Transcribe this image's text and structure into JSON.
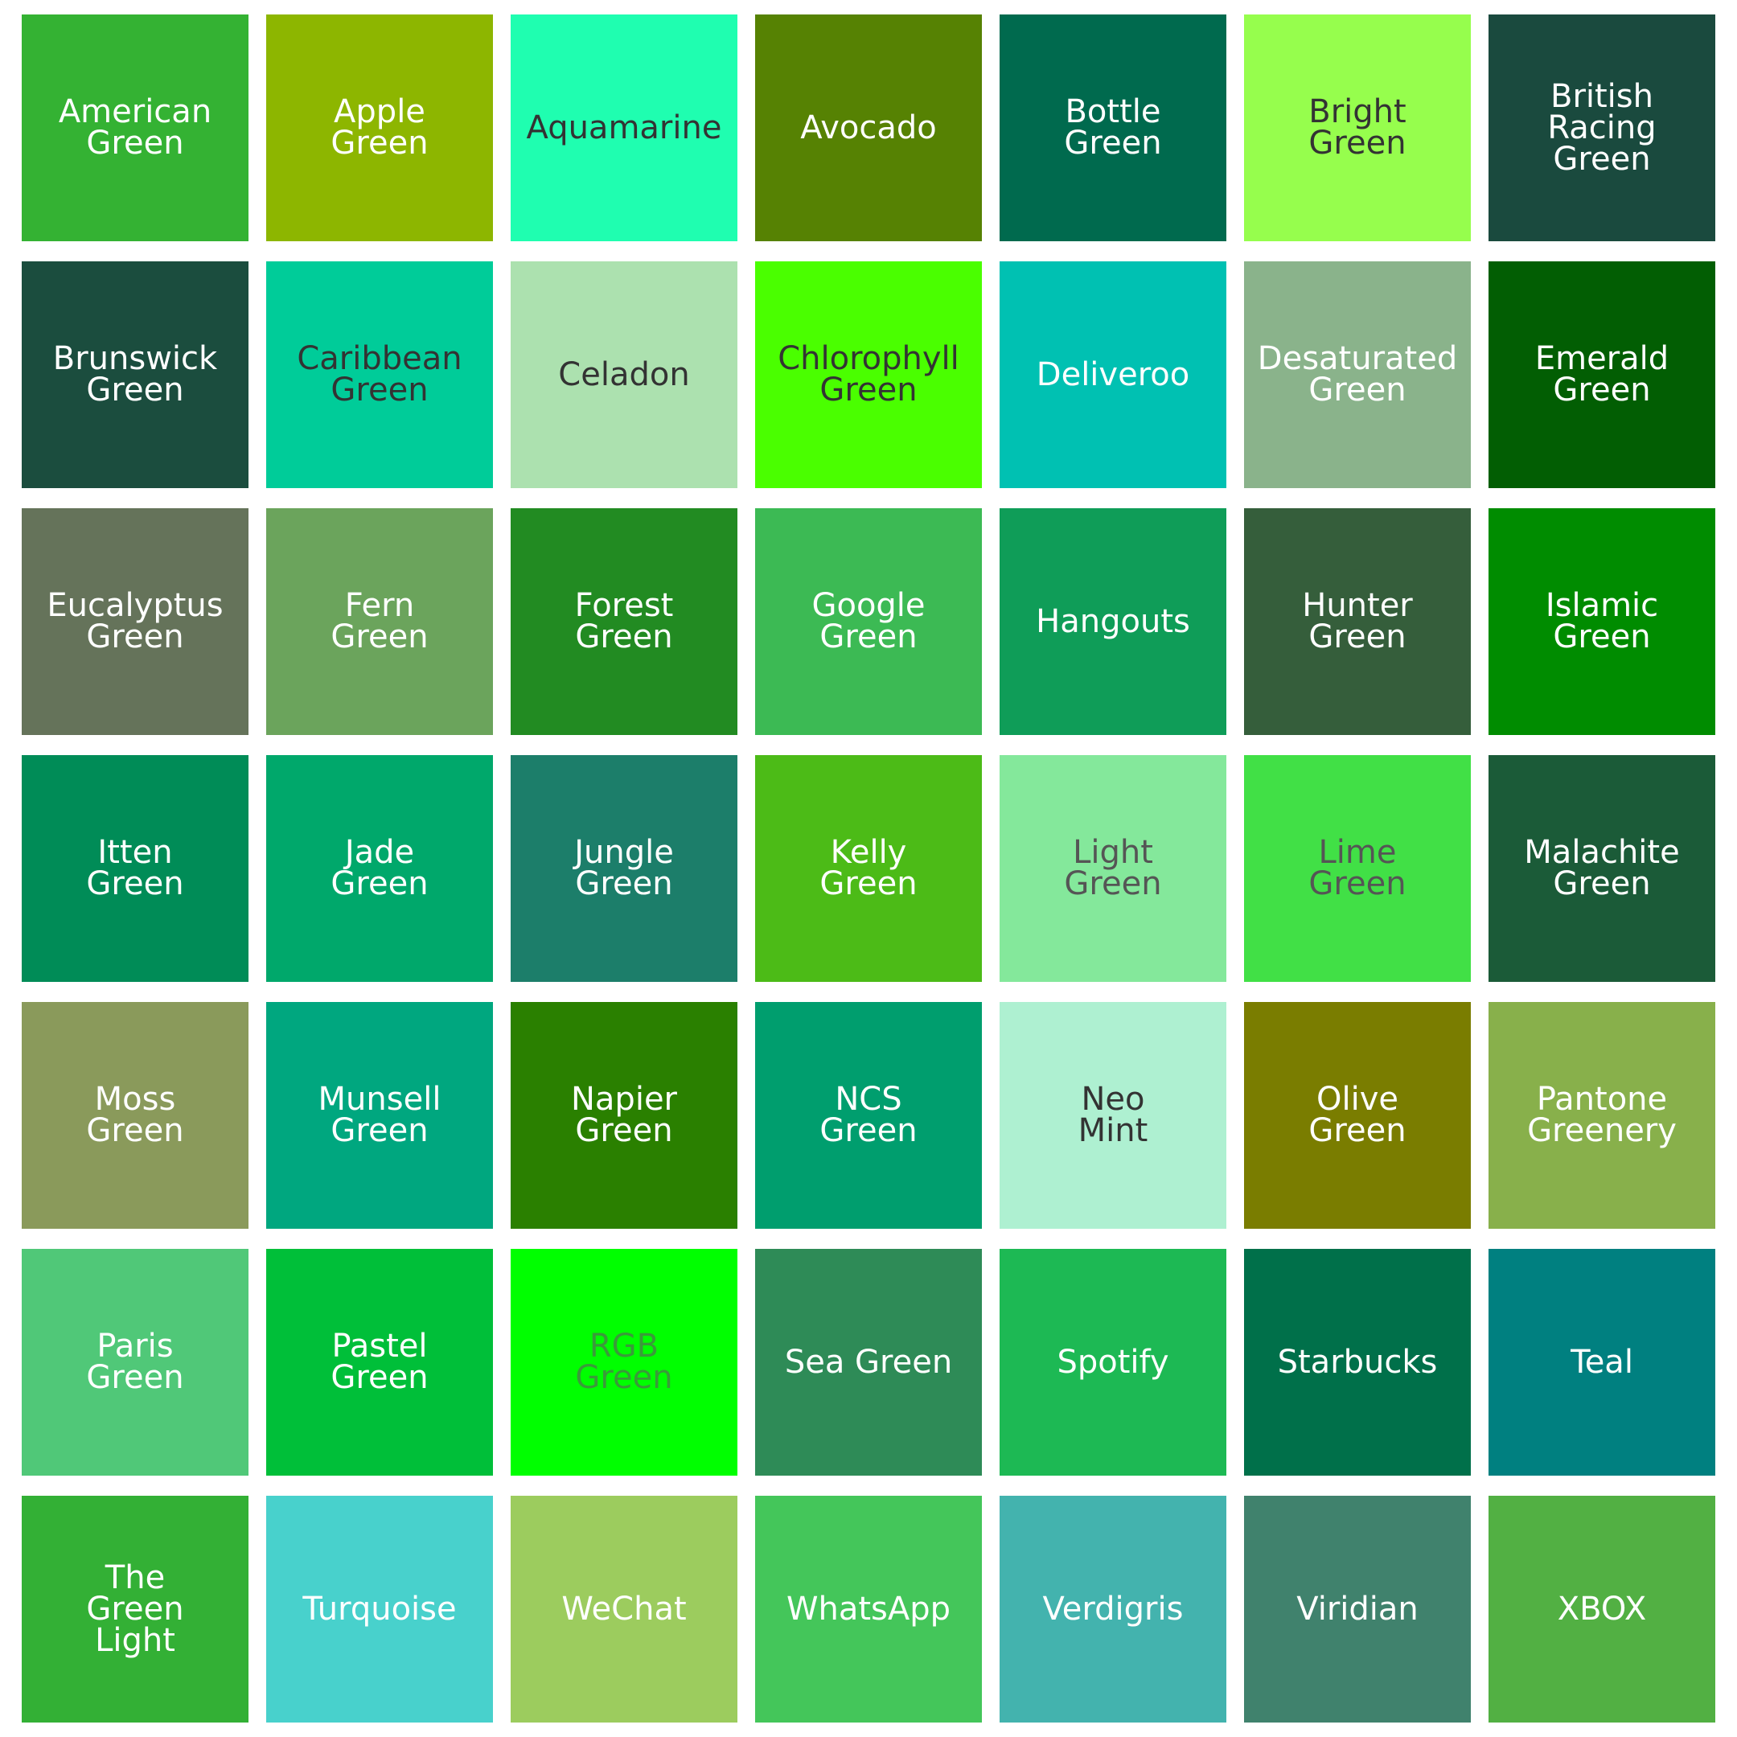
{
  "swatches": [
    {
      "label": "American\nGreen",
      "bg": "#34b233",
      "fg": "#ffffff"
    },
    {
      "label": "Apple\nGreen",
      "bg": "#8db600",
      "fg": "#ffffff"
    },
    {
      "label": "Aquamarine",
      "bg": "#1ffeb0",
      "fg": "#333333"
    },
    {
      "label": "Avocado",
      "bg": "#568203",
      "fg": "#ffffff"
    },
    {
      "label": "Bottle\nGreen",
      "bg": "#006a4e",
      "fg": "#ffffff"
    },
    {
      "label": "Bright\nGreen",
      "bg": "#96fe4d",
      "fg": "#333333"
    },
    {
      "label": "British\nRacing\nGreen",
      "bg": "#1a4a3e",
      "fg": "#ffffff"
    },
    {
      "label": "Brunswick\nGreen",
      "bg": "#1b4d3e",
      "fg": "#ffffff"
    },
    {
      "label": "Caribbean\nGreen",
      "bg": "#00cc99",
      "fg": "#333333"
    },
    {
      "label": "Celadon",
      "bg": "#ace1af",
      "fg": "#333333"
    },
    {
      "label": "Chlorophyll\nGreen",
      "bg": "#4aff00",
      "fg": "#333333"
    },
    {
      "label": "Deliveroo",
      "bg": "#00c1b2",
      "fg": "#ffffff"
    },
    {
      "label": "Desaturated\nGreen",
      "bg": "#8ab38b",
      "fg": "#ffffff"
    },
    {
      "label": "Emerald\nGreen",
      "bg": "#025e03",
      "fg": "#ffffff"
    },
    {
      "label": "Eucalyptus\nGreen",
      "bg": "#65735a",
      "fg": "#ffffff"
    },
    {
      "label": "Fern\nGreen",
      "bg": "#6ba45c",
      "fg": "#ffffff"
    },
    {
      "label": "Forest\nGreen",
      "bg": "#228b22",
      "fg": "#ffffff"
    },
    {
      "label": "Google\nGreen",
      "bg": "#3cba54",
      "fg": "#ffffff"
    },
    {
      "label": "Hangouts",
      "bg": "#0f9d58",
      "fg": "#ffffff"
    },
    {
      "label": "Hunter\nGreen",
      "bg": "#355e3b",
      "fg": "#ffffff"
    },
    {
      "label": "Islamic\nGreen",
      "bg": "#008c00",
      "fg": "#ffffff"
    },
    {
      "label": "Itten\nGreen",
      "bg": "#008c57",
      "fg": "#ffffff"
    },
    {
      "label": "Jade\nGreen",
      "bg": "#00a86b",
      "fg": "#ffffff"
    },
    {
      "label": "Jungle\nGreen",
      "bg": "#1c7e6a",
      "fg": "#ffffff"
    },
    {
      "label": "Kelly\nGreen",
      "bg": "#4cbb17",
      "fg": "#ffffff"
    },
    {
      "label": "Light\nGreen",
      "bg": "#84e89b",
      "fg": "#555555"
    },
    {
      "label": "Lime\nGreen",
      "bg": "#41e046",
      "fg": "#555555"
    },
    {
      "label": "Malachite\nGreen",
      "bg": "#1b5b38",
      "fg": "#ffffff"
    },
    {
      "label": "Moss\nGreen",
      "bg": "#8a9a5b",
      "fg": "#ffffff"
    },
    {
      "label": "Munsell\nGreen",
      "bg": "#00a77f",
      "fg": "#ffffff"
    },
    {
      "label": "Napier\nGreen",
      "bg": "#2a8000",
      "fg": "#ffffff"
    },
    {
      "label": "NCS\nGreen",
      "bg": "#009e6e",
      "fg": "#ffffff"
    },
    {
      "label": "Neo\nMint",
      "bg": "#aef0d1",
      "fg": "#333333"
    },
    {
      "label": "Olive\nGreen",
      "bg": "#7a7d00",
      "fg": "#ffffff"
    },
    {
      "label": "Pantone\nGreenery",
      "bg": "#88b04b",
      "fg": "#ffffff"
    },
    {
      "label": "Paris\nGreen",
      "bg": "#50c878",
      "fg": "#ffffff"
    },
    {
      "label": "Pastel\nGreen",
      "bg": "#00bf39",
      "fg": "#ffffff"
    },
    {
      "label": "RGB\nGreen",
      "bg": "#00ff00",
      "fg": "#3a9a3a"
    },
    {
      "label": "Sea Green",
      "bg": "#2e8b57",
      "fg": "#ffffff"
    },
    {
      "label": "Spotify",
      "bg": "#1db954",
      "fg": "#ffffff"
    },
    {
      "label": "Starbucks",
      "bg": "#00704a",
      "fg": "#ffffff"
    },
    {
      "label": "Teal",
      "bg": "#008080",
      "fg": "#ffffff"
    },
    {
      "label": "The\nGreen\nLight",
      "bg": "#33b035",
      "fg": "#ffffff"
    },
    {
      "label": "Turquoise",
      "bg": "#48d1cc",
      "fg": "#ffffff"
    },
    {
      "label": "WeChat",
      "bg": "#9ccc5e",
      "fg": "#ffffff"
    },
    {
      "label": "WhatsApp",
      "bg": "#44c65a",
      "fg": "#ffffff"
    },
    {
      "label": "Verdigris",
      "bg": "#43b3ae",
      "fg": "#ffffff"
    },
    {
      "label": "Viridian",
      "bg": "#40826d",
      "fg": "#ffffff"
    },
    {
      "label": "XBOX",
      "bg": "#52b043",
      "fg": "#ffffff"
    }
  ]
}
